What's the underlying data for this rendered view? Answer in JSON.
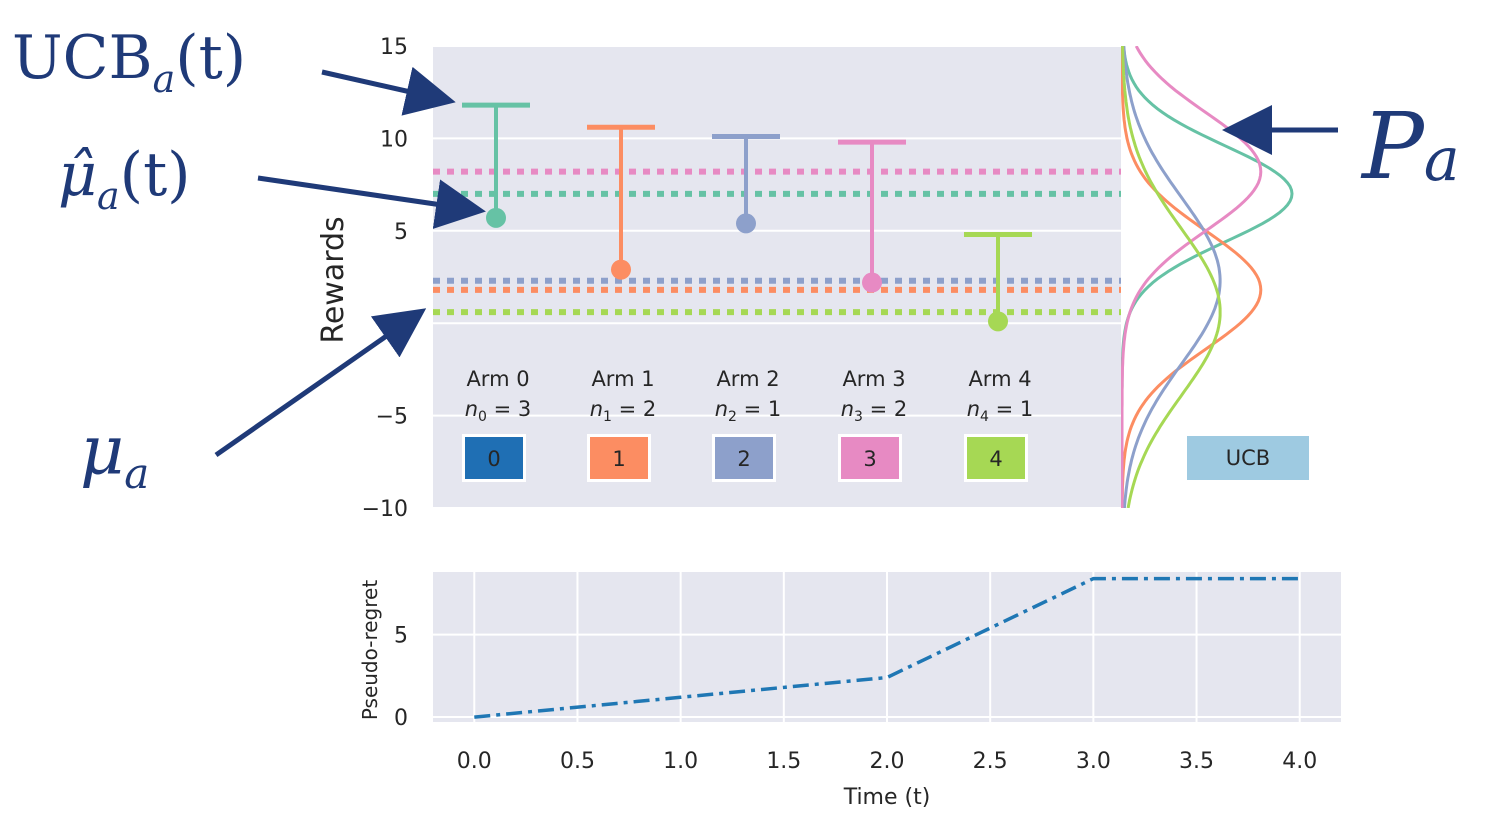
{
  "colors": {
    "arm0": "#66c2a5",
    "arm1": "#fc8d62",
    "arm2": "#8da0cb",
    "arm3": "#e78ac3",
    "arm4": "#a6d854",
    "regret": "#1f77b4",
    "annot": "#1f3a78",
    "panel": "#e5e6ef"
  },
  "annotations": {
    "ucb": {
      "main": "UCB",
      "sub": "a",
      "tail": "(t)"
    },
    "muhat": {
      "main": "μ̂",
      "sub": "a",
      "tail": "(t)"
    },
    "mu": {
      "main": "μ",
      "sub": "a"
    },
    "p": {
      "main": "P",
      "sub": "a"
    }
  },
  "chart_data": [
    {
      "type": "errorbar",
      "ylabel": "Rewards",
      "ylim": [
        -10,
        15
      ],
      "yticks": [
        "−10",
        "−5",
        "0",
        "5",
        "10",
        "15"
      ],
      "grid": true,
      "arms": [
        {
          "name": "Arm 0",
          "n_label": "n",
          "n_sub": "0",
          "n_value": "= 3",
          "button": "0",
          "mu": 7.0,
          "mu_hat": 5.7,
          "ucb": 11.8
        },
        {
          "name": "Arm 1",
          "n_label": "n",
          "n_sub": "1",
          "n_value": "= 2",
          "button": "1",
          "mu": 1.8,
          "mu_hat": 2.9,
          "ucb": 10.6
        },
        {
          "name": "Arm 2",
          "n_label": "n",
          "n_sub": "2",
          "n_value": "= 1",
          "button": "2",
          "mu": 2.3,
          "mu_hat": 5.4,
          "ucb": 10.1
        },
        {
          "name": "Arm 3",
          "n_label": "n",
          "n_sub": "3",
          "n_value": "= 2",
          "button": "3",
          "mu": 8.2,
          "mu_hat": 2.2,
          "ucb": 9.8
        },
        {
          "name": "Arm 4",
          "n_label": "n",
          "n_sub": "4",
          "n_value": "= 1",
          "button": "4",
          "mu": 0.6,
          "mu_hat": 0.1,
          "ucb": 4.8
        }
      ],
      "strategy_button": "UCB"
    },
    {
      "type": "line",
      "xlabel": "Time (t)",
      "ylabel": "Pseudo-regret",
      "xlim": [
        -0.2,
        4.2
      ],
      "ylim": [
        -0.3,
        8.8
      ],
      "xticks": [
        "0.0",
        "0.5",
        "1.0",
        "1.5",
        "2.0",
        "2.5",
        "3.0",
        "3.5",
        "4.0"
      ],
      "yticks": [
        "0",
        "5"
      ],
      "linestyle": "dashdot",
      "x": [
        0,
        1,
        2,
        3,
        4
      ],
      "y": [
        0.0,
        1.2,
        2.4,
        8.4,
        8.4
      ]
    }
  ]
}
